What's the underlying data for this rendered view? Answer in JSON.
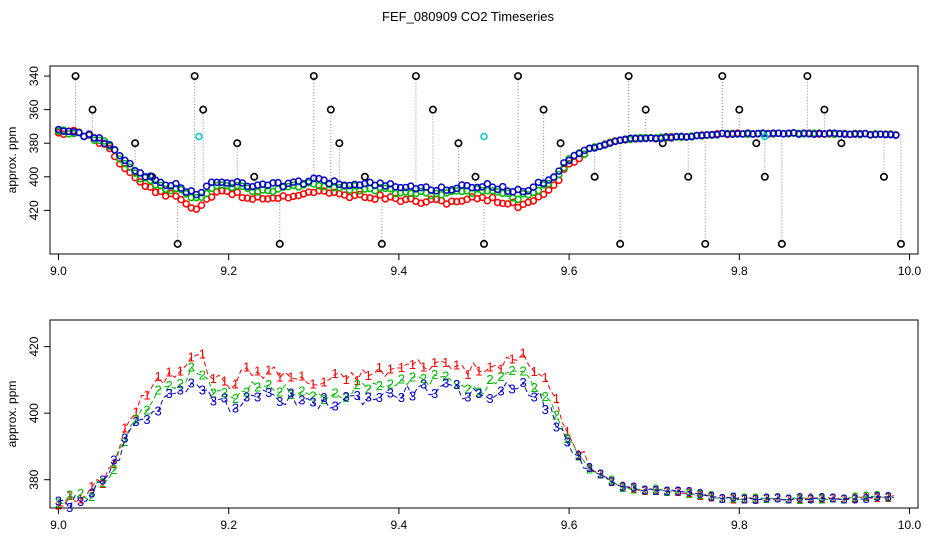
{
  "title": "FEF_080909  CO2 Timeseries",
  "colors": {
    "series1": "#ff0000",
    "series2": "#00bb00",
    "series3": "#0000cc",
    "reference": "#000000",
    "flag": "#00cccc"
  },
  "chart_data": [
    {
      "type": "scatter",
      "ylabel": "approx. ppm",
      "xlabel": "",
      "xlim": [
        8.99,
        10.01
      ],
      "ylim": [
        334,
        446
      ],
      "y_reversed": true,
      "x_ticks": [
        "9.0",
        "9.2",
        "9.4",
        "9.6",
        "9.8",
        "10.0"
      ],
      "y_ticks": [
        "340",
        "360",
        "380",
        "400",
        "420"
      ],
      "marker": "circle",
      "reference_levels": [
        340,
        360,
        380,
        400,
        440
      ],
      "reference_times": [
        9.02,
        9.04,
        9.09,
        9.11,
        9.14,
        9.16,
        9.17,
        9.21,
        9.23,
        9.26,
        9.3,
        9.32,
        9.33,
        9.36,
        9.38,
        9.42,
        9.44,
        9.47,
        9.49,
        9.5,
        9.54,
        9.57,
        9.59,
        9.63,
        9.66,
        9.67,
        9.69,
        9.71,
        9.74,
        9.76,
        9.78,
        9.8,
        9.82,
        9.83,
        9.85,
        9.88,
        9.9,
        9.92,
        9.97,
        9.99
      ],
      "profile": [
        [
          9.0,
          373.3
        ],
        [
          9.02,
          373.5
        ],
        [
          9.04,
          376
        ],
        [
          9.06,
          381
        ],
        [
          9.08,
          392
        ],
        [
          9.1,
          399
        ],
        [
          9.12,
          403
        ],
        [
          9.14,
          405
        ],
        [
          9.16,
          411
        ],
        [
          9.18,
          404
        ],
        [
          9.2,
          402
        ],
        [
          9.22,
          405
        ],
        [
          9.26,
          405
        ],
        [
          9.3,
          402
        ],
        [
          9.34,
          404
        ],
        [
          9.38,
          405
        ],
        [
          9.42,
          407
        ],
        [
          9.46,
          407
        ],
        [
          9.5,
          405
        ],
        [
          9.54,
          409
        ],
        [
          9.56,
          406
        ],
        [
          9.58,
          400
        ],
        [
          9.6,
          389
        ],
        [
          9.62,
          384
        ],
        [
          9.64,
          381
        ],
        [
          9.66,
          378
        ],
        [
          9.68,
          377
        ],
        [
          9.7,
          377
        ],
        [
          9.74,
          376
        ],
        [
          9.78,
          374.5
        ],
        [
          9.82,
          374.2
        ],
        [
          9.86,
          374.2
        ],
        [
          9.9,
          374.3
        ],
        [
          9.94,
          374.5
        ],
        [
          9.98,
          374.9
        ]
      ],
      "series_offsets": [
        8,
        3,
        0
      ],
      "series_spacing": 0.006,
      "flags": [
        {
          "x": 9.165,
          "y": 376
        },
        {
          "x": 9.5,
          "y": 376
        },
        {
          "x": 9.83,
          "y": 376
        }
      ]
    },
    {
      "type": "line",
      "ylabel": "approx. ppm",
      "xlabel": "",
      "xlim": [
        8.99,
        10.01
      ],
      "ylim": [
        371.5,
        428
      ],
      "x_ticks": [
        "9.0",
        "9.2",
        "9.4",
        "9.6",
        "9.8",
        "10.0"
      ],
      "y_ticks": [
        "380",
        "400",
        "420"
      ],
      "series": [
        {
          "marker": "1",
          "offset": 8
        },
        {
          "marker": "2",
          "offset": 3
        },
        {
          "marker": "3",
          "offset": 0
        }
      ],
      "profile_ref": "same as first panel"
    }
  ]
}
